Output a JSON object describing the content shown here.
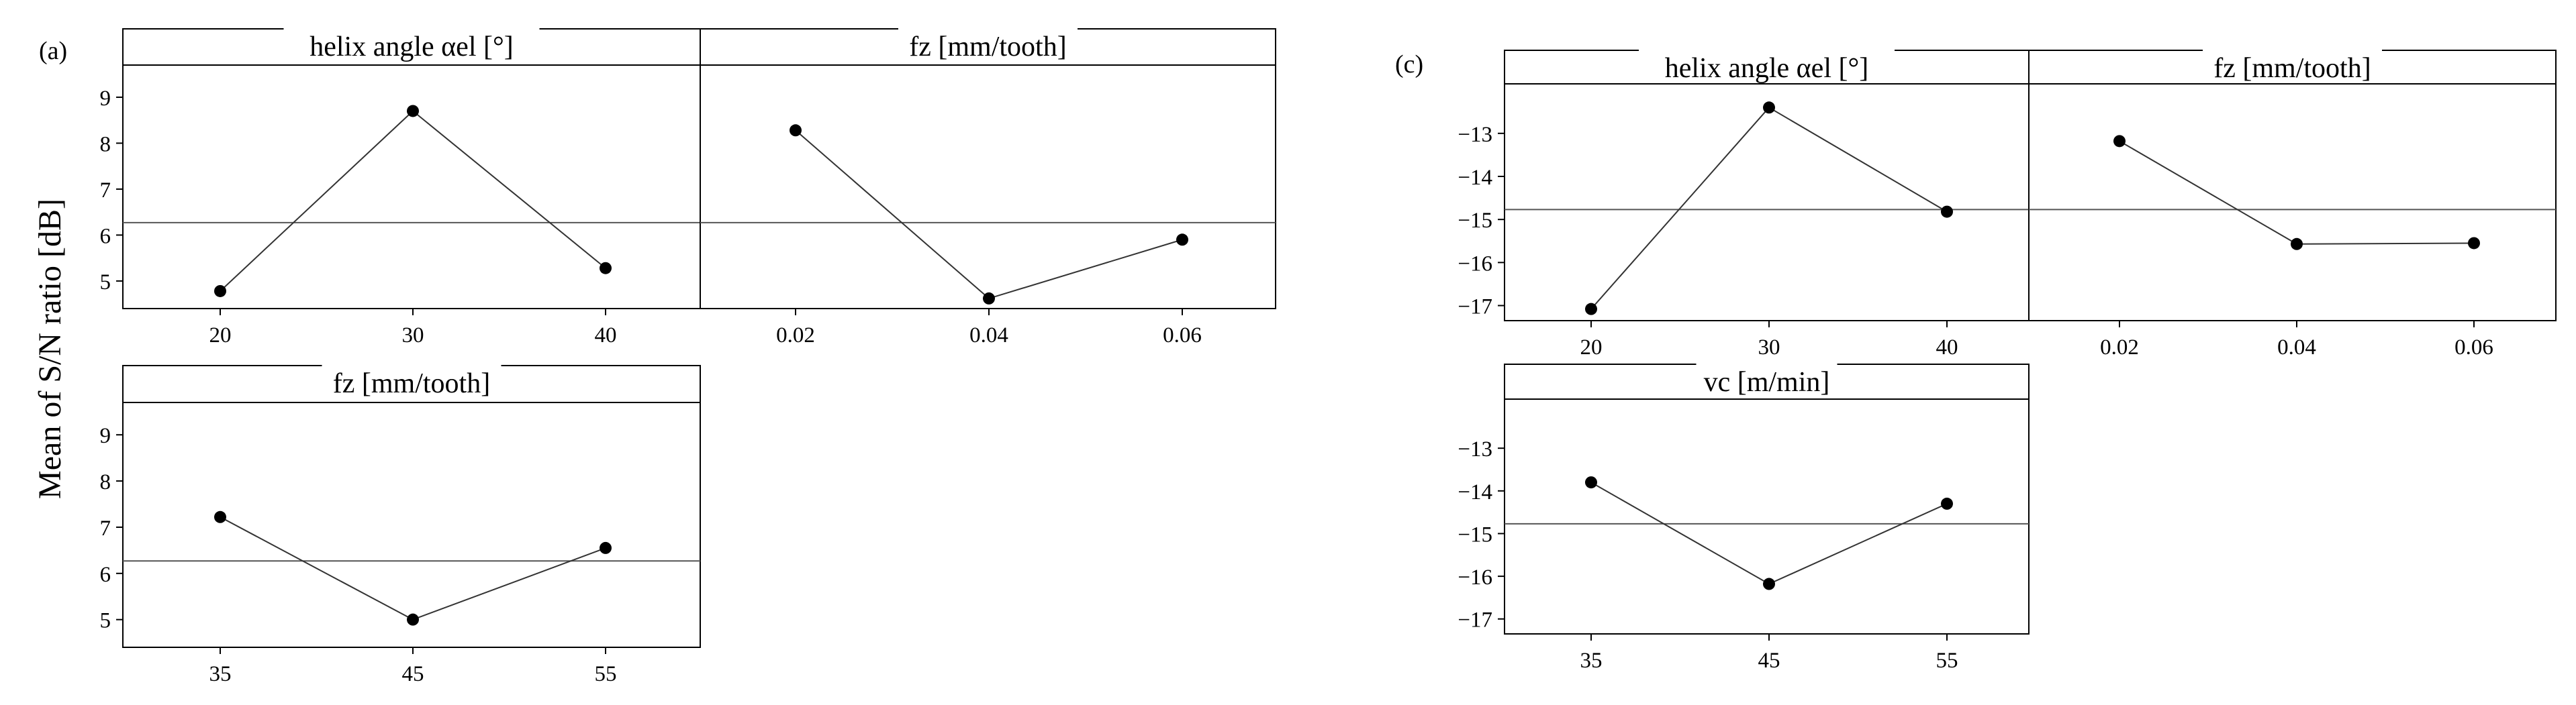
{
  "ylabel": "Mean of S/N ratio [dB]",
  "chart_data": [
    {
      "type": "line",
      "label": "(a)",
      "title": "helix angle αel [°]",
      "ylim": [
        4.4,
        9.7
      ],
      "yticks": [
        5,
        6,
        7,
        8,
        9
      ],
      "ytick_labels": [
        "5",
        "6",
        "7",
        "8",
        "9"
      ],
      "mean": 6.27,
      "categories": [
        "20",
        "30",
        "40"
      ],
      "values": [
        4.78,
        8.7,
        5.28
      ]
    },
    {
      "type": "line",
      "title": "fz [mm/tooth]",
      "ylim": [
        4.4,
        9.7
      ],
      "mean": 6.27,
      "categories": [
        "0.02",
        "0.04",
        "0.06"
      ],
      "values": [
        8.28,
        4.62,
        5.9
      ]
    },
    {
      "type": "line",
      "title": "fz [mm/tooth]",
      "ylim": [
        4.4,
        9.7
      ],
      "yticks": [
        5,
        6,
        7,
        8,
        9
      ],
      "ytick_labels": [
        "5",
        "6",
        "7",
        "8",
        "9"
      ],
      "mean": 6.27,
      "categories": [
        "35",
        "45",
        "55"
      ],
      "values": [
        7.22,
        5.0,
        6.55
      ]
    },
    {
      "type": "line",
      "label": "(c)",
      "title": "helix angle αel [°]",
      "ylim": [
        -17.35,
        -11.85
      ],
      "yticks": [
        -13,
        -14,
        -15,
        -16,
        -17
      ],
      "ytick_labels": [
        "−13",
        "−14",
        "−15",
        "−16",
        "−17"
      ],
      "mean": -14.77,
      "categories": [
        "20",
        "30",
        "40"
      ],
      "values": [
        -17.08,
        -12.4,
        -14.82
      ]
    },
    {
      "type": "line",
      "title": "fz [mm/tooth]",
      "ylim": [
        -17.35,
        -11.85
      ],
      "mean": -14.77,
      "categories": [
        "0.02",
        "0.04",
        "0.06"
      ],
      "values": [
        -13.18,
        -15.57,
        -15.55
      ]
    },
    {
      "type": "line",
      "title": "vc [m/min]",
      "ylim": [
        -17.35,
        -11.85
      ],
      "yticks": [
        -13,
        -14,
        -15,
        -16,
        -17
      ],
      "ytick_labels": [
        "−13",
        "−14",
        "−15",
        "−16",
        "−17"
      ],
      "mean": -14.77,
      "categories": [
        "35",
        "45",
        "55"
      ],
      "values": [
        -13.8,
        -16.18,
        -14.3
      ]
    }
  ]
}
